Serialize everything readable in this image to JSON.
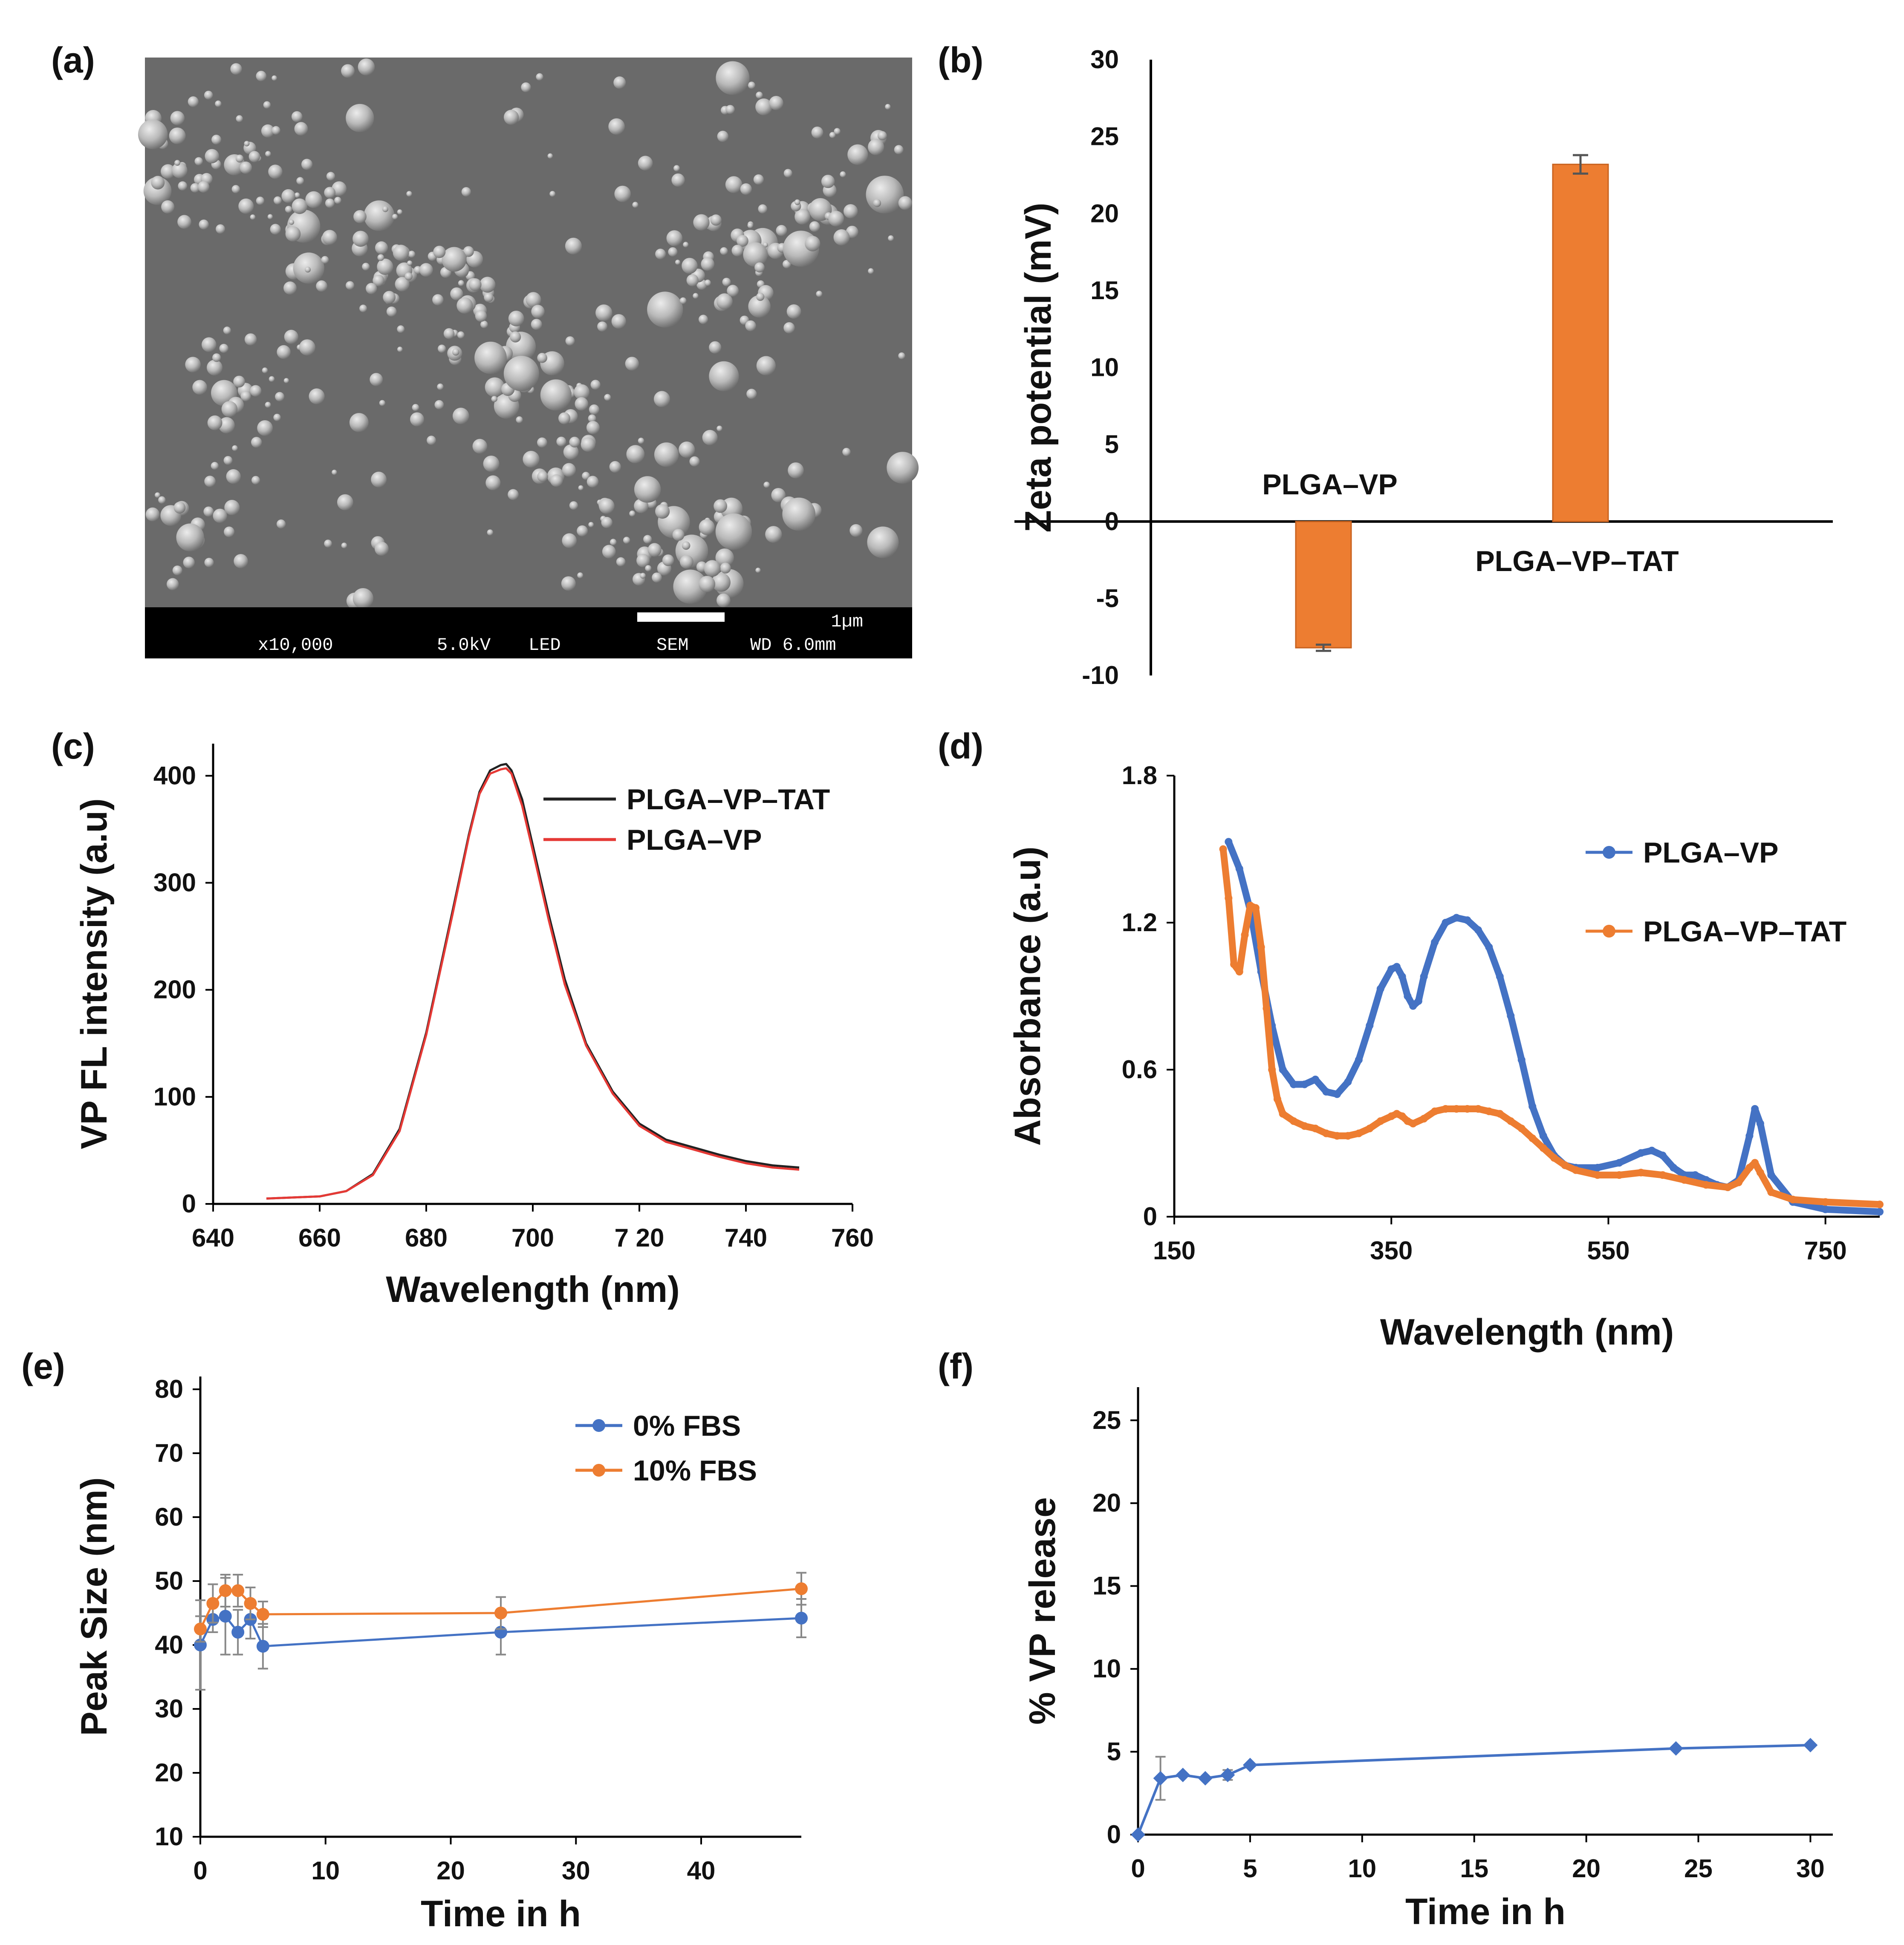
{
  "colors": {
    "orange": "#ED7D31",
    "blue": "#4472C4",
    "red": "#E53935",
    "black": "#222222",
    "errorbar": "#555555"
  },
  "panels": {
    "a": {
      "label": "(a)",
      "sem": {
        "magnification": "x10,000",
        "voltage": "5.0kV",
        "detector": "LED",
        "mode": "SEM",
        "working_distance": "WD 6.0mm",
        "scale_label": "1µm"
      }
    },
    "b": {
      "label": "(b)"
    },
    "c": {
      "label": "(c)"
    },
    "d": {
      "label": "(d)"
    },
    "e": {
      "label": "(e)"
    },
    "f": {
      "label": "(f)"
    }
  },
  "chart_data": [
    {
      "id": "b",
      "type": "bar",
      "ylabel": "Zeta potential (mV)",
      "ylim": [
        -10,
        30
      ],
      "yticks": [
        -10,
        -5,
        0,
        5,
        10,
        15,
        20,
        25,
        30
      ],
      "categories": [
        "PLGA–VP",
        "PLGA–VP–TAT"
      ],
      "values": [
        -8.2,
        23.2
      ],
      "errors": [
        0.2,
        0.6
      ]
    },
    {
      "id": "c",
      "type": "line",
      "xlabel": "Wavelength (nm)",
      "ylabel": "VP FL intensity (a.u)",
      "xlim": [
        640,
        760
      ],
      "ylim": [
        0,
        430
      ],
      "xticks": [
        640,
        660,
        680,
        700,
        720,
        740,
        760
      ],
      "xtick_labels": [
        "640",
        "660",
        "680",
        "700",
        "7 20",
        "740",
        "760"
      ],
      "yticks": [
        0,
        100,
        200,
        300,
        400
      ],
      "series": [
        {
          "name": "PLGA–VP–TAT",
          "color": "#222222",
          "x": [
            650,
            660,
            665,
            670,
            675,
            680,
            685,
            688,
            690,
            692,
            694,
            695,
            696,
            698,
            700,
            703,
            706,
            710,
            715,
            720,
            725,
            730,
            735,
            740,
            745,
            750
          ],
          "y": [
            5,
            7,
            12,
            28,
            70,
            160,
            275,
            345,
            385,
            405,
            410,
            411,
            405,
            378,
            335,
            270,
            210,
            150,
            105,
            75,
            60,
            53,
            46,
            40,
            36,
            34
          ]
        },
        {
          "name": "PLGA–VP",
          "color": "#E53935",
          "x": [
            650,
            660,
            665,
            670,
            675,
            680,
            685,
            688,
            690,
            692,
            694,
            695,
            696,
            698,
            700,
            703,
            706,
            710,
            715,
            720,
            725,
            730,
            735,
            740,
            745,
            750
          ],
          "y": [
            5,
            7,
            12,
            27,
            68,
            158,
            272,
            343,
            383,
            402,
            406,
            407,
            402,
            372,
            330,
            265,
            205,
            148,
            103,
            73,
            58,
            51,
            44,
            38,
            34,
            32
          ]
        }
      ]
    },
    {
      "id": "d",
      "type": "line",
      "xlabel": "Wavelength (nm)",
      "ylabel": "Absorbance (a.u)",
      "xlim": [
        150,
        800
      ],
      "ylim": [
        0,
        1.8
      ],
      "xticks": [
        150,
        350,
        550,
        750
      ],
      "yticks": [
        0,
        0.6,
        1.2,
        1.8
      ],
      "ytick_labels": [
        "0",
        "0.6",
        "1.2",
        "1.8"
      ],
      "series": [
        {
          "name": "PLGA–VP",
          "color": "#4472C4",
          "x": [
            200,
            210,
            220,
            230,
            240,
            250,
            260,
            270,
            280,
            290,
            300,
            310,
            320,
            330,
            340,
            350,
            355,
            360,
            365,
            370,
            375,
            380,
            390,
            400,
            410,
            420,
            430,
            440,
            450,
            460,
            470,
            480,
            490,
            500,
            510,
            520,
            540,
            560,
            580,
            590,
            600,
            610,
            620,
            630,
            640,
            650,
            660,
            670,
            680,
            685,
            690,
            700,
            720,
            750,
            800
          ],
          "y": [
            1.53,
            1.42,
            1.25,
            1.0,
            0.78,
            0.6,
            0.54,
            0.54,
            0.56,
            0.51,
            0.5,
            0.55,
            0.64,
            0.78,
            0.93,
            1.01,
            1.02,
            0.98,
            0.9,
            0.86,
            0.88,
            0.98,
            1.12,
            1.2,
            1.22,
            1.21,
            1.17,
            1.1,
            0.98,
            0.82,
            0.64,
            0.45,
            0.33,
            0.25,
            0.21,
            0.2,
            0.2,
            0.22,
            0.26,
            0.27,
            0.25,
            0.2,
            0.17,
            0.17,
            0.15,
            0.13,
            0.12,
            0.15,
            0.33,
            0.44,
            0.38,
            0.17,
            0.06,
            0.03,
            0.02
          ]
        },
        {
          "name": "PLGA–VP–TAT",
          "color": "#ED7D31",
          "x": [
            195,
            200,
            205,
            210,
            215,
            220,
            225,
            230,
            235,
            240,
            245,
            250,
            260,
            270,
            280,
            290,
            300,
            310,
            320,
            330,
            340,
            350,
            355,
            360,
            365,
            370,
            380,
            390,
            400,
            410,
            420,
            430,
            440,
            450,
            460,
            470,
            480,
            490,
            500,
            510,
            520,
            540,
            560,
            580,
            600,
            620,
            640,
            660,
            670,
            680,
            685,
            690,
            700,
            720,
            750,
            800
          ],
          "y": [
            1.5,
            1.3,
            1.03,
            1.0,
            1.15,
            1.27,
            1.26,
            1.1,
            0.85,
            0.6,
            0.48,
            0.42,
            0.39,
            0.37,
            0.36,
            0.34,
            0.33,
            0.33,
            0.34,
            0.36,
            0.39,
            0.41,
            0.42,
            0.41,
            0.39,
            0.38,
            0.4,
            0.43,
            0.44,
            0.44,
            0.44,
            0.44,
            0.43,
            0.42,
            0.39,
            0.36,
            0.32,
            0.28,
            0.24,
            0.21,
            0.19,
            0.17,
            0.17,
            0.18,
            0.17,
            0.15,
            0.13,
            0.12,
            0.14,
            0.2,
            0.22,
            0.18,
            0.1,
            0.07,
            0.06,
            0.05
          ]
        }
      ]
    },
    {
      "id": "e",
      "type": "line",
      "xlabel": "Time in h",
      "ylabel": "Peak Size (nm)",
      "xlim": [
        0,
        48
      ],
      "ylim": [
        10,
        82
      ],
      "xticks": [
        0,
        10,
        20,
        30,
        40
      ],
      "yticks": [
        10,
        20,
        30,
        40,
        50,
        60,
        70,
        80
      ],
      "series": [
        {
          "name": "0% FBS",
          "color": "#4472C4",
          "x": [
            0,
            1,
            2,
            3,
            4,
            5,
            24,
            48
          ],
          "y": [
            40,
            44,
            44.5,
            42,
            44,
            39.8,
            42,
            44.2
          ],
          "errors": [
            7,
            2,
            6,
            3.5,
            3,
            3.5,
            3.5,
            3
          ]
        },
        {
          "name": "10% FBS",
          "color": "#ED7D31",
          "x": [
            0,
            1,
            2,
            3,
            4,
            5,
            24,
            48
          ],
          "y": [
            42.5,
            46.5,
            48.5,
            48.5,
            46.5,
            44.8,
            45,
            48.8
          ],
          "errors": [
            2,
            3,
            2.5,
            2.5,
            2.5,
            2,
            2.5,
            2.5
          ]
        }
      ]
    },
    {
      "id": "f",
      "type": "line",
      "xlabel": "Time in h",
      "ylabel": "% VP release",
      "xlim": [
        0,
        31
      ],
      "ylim": [
        0,
        27
      ],
      "xticks": [
        0,
        5,
        10,
        15,
        20,
        25,
        30
      ],
      "yticks": [
        0,
        5,
        10,
        15,
        20,
        25
      ],
      "series": [
        {
          "name": "VP release",
          "color": "#4472C4",
          "x": [
            0,
            1,
            2,
            3,
            4,
            5,
            24,
            30
          ],
          "y": [
            0,
            3.4,
            3.6,
            3.4,
            3.6,
            4.2,
            5.2,
            5.4
          ],
          "errors": [
            0,
            1.3,
            0,
            0,
            0.3,
            0,
            0,
            0
          ]
        }
      ]
    }
  ]
}
